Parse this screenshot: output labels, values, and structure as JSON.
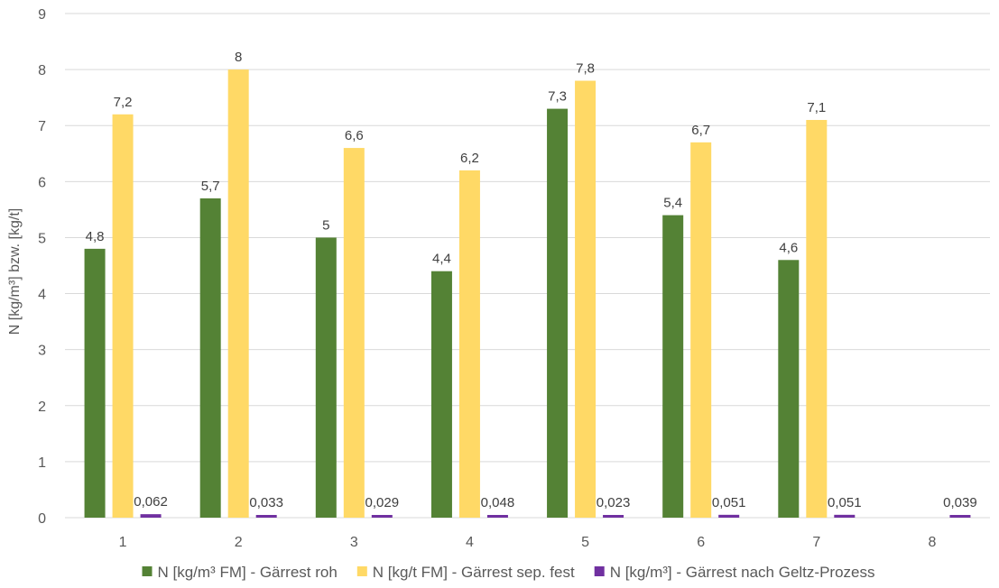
{
  "chart_data": {
    "type": "bar",
    "categories": [
      "1",
      "2",
      "3",
      "4",
      "5",
      "6",
      "7",
      "8"
    ],
    "series": [
      {
        "name": "N [kg/m³ FM] - Gärrest roh",
        "color": "#548235",
        "values": [
          4.8,
          5.7,
          5,
          4.4,
          7.3,
          5.4,
          4.6,
          null
        ],
        "labels": [
          "4,8",
          "5,7",
          "5",
          "4,4",
          "7,3",
          "5,4",
          "4,6",
          ""
        ]
      },
      {
        "name": "N [kg/t FM] - Gärrest sep. fest",
        "color": "#ffd966",
        "values": [
          7.2,
          8,
          6.6,
          6.2,
          7.8,
          6.7,
          7.1,
          null
        ],
        "labels": [
          "7,2",
          "8",
          "6,6",
          "6,2",
          "7,8",
          "6,7",
          "7,1",
          ""
        ]
      },
      {
        "name": "N [kg/m³] - Gärrest nach Geltz-Prozess",
        "color": "#7030a0",
        "values": [
          0.062,
          0.033,
          0.029,
          0.048,
          0.023,
          0.051,
          0.051,
          0.039
        ],
        "labels": [
          "0,062",
          "0,033",
          "0,029",
          "0,048",
          "0,023",
          "0,051",
          "0,051",
          "0,039"
        ]
      }
    ],
    "ylabel": "N [kg/m³] bzw. [kg/t]",
    "xlabel": "",
    "ylim": [
      0,
      9
    ],
    "yticks": [
      "0",
      "1",
      "2",
      "3",
      "4",
      "5",
      "6",
      "7",
      "8",
      "9"
    ],
    "grid": true,
    "legend_position": "bottom"
  }
}
